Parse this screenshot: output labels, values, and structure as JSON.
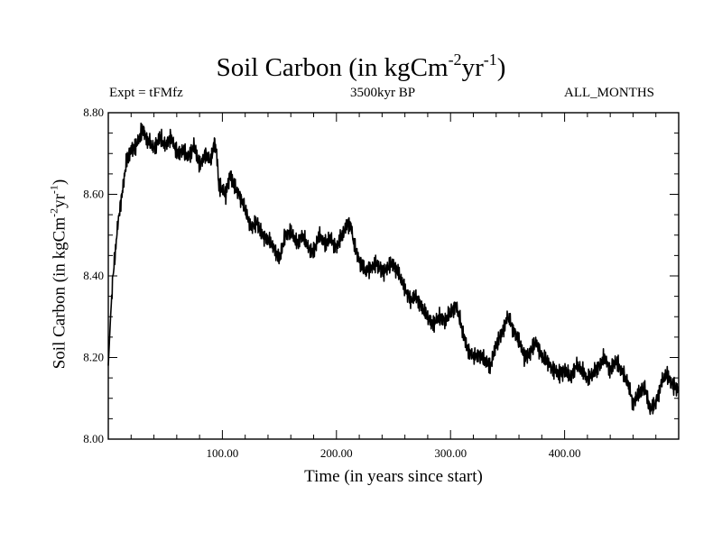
{
  "chart_data": {
    "type": "line",
    "title": {
      "text": "Soil Carbon (in kgCm",
      "sup1": "-2",
      "mid": "yr",
      "sup2": "-1",
      "end": ")"
    },
    "subtitle_left": "Expt = tFMfz",
    "subtitle_center": "3500kyr BP",
    "subtitle_right": "ALL_MONTHS",
    "xlabel": "Time (in years since start)",
    "ylabel": {
      "text": "Soil Carbon (in kgCm",
      "sup1": "-2",
      "mid": "yr",
      "sup2": "-1",
      "end": ")"
    },
    "xlim": [
      0,
      500
    ],
    "ylim": [
      8.0,
      8.8
    ],
    "xticks": [
      100,
      200,
      300,
      400
    ],
    "xtick_labels": [
      "100.00",
      "200.00",
      "300.00",
      "400.00"
    ],
    "yticks": [
      8.0,
      8.2,
      8.4,
      8.6,
      8.8
    ],
    "ytick_labels": [
      "8.00",
      "8.20",
      "8.40",
      "8.60",
      "8.80"
    ],
    "grid": false,
    "series": [
      {
        "name": "Soil Carbon",
        "color": "#000000",
        "x": [
          0,
          2,
          4,
          6,
          8,
          10,
          13,
          16,
          20,
          25,
          30,
          35,
          40,
          45,
          50,
          55,
          60,
          65,
          70,
          75,
          80,
          85,
          90,
          93,
          95,
          97,
          100,
          103,
          107,
          110,
          115,
          120,
          125,
          130,
          135,
          140,
          145,
          150,
          155,
          160,
          165,
          170,
          175,
          180,
          185,
          190,
          195,
          200,
          205,
          210,
          213,
          215,
          220,
          225,
          230,
          235,
          240,
          245,
          250,
          255,
          260,
          265,
          270,
          275,
          280,
          285,
          290,
          295,
          300,
          305,
          310,
          315,
          320,
          325,
          330,
          335,
          340,
          345,
          350,
          355,
          360,
          365,
          370,
          375,
          380,
          385,
          390,
          395,
          400,
          405,
          410,
          415,
          420,
          425,
          430,
          435,
          440,
          445,
          450,
          455,
          460,
          465,
          470,
          475,
          480,
          485,
          490,
          495,
          500
        ],
        "y": [
          8.18,
          8.3,
          8.4,
          8.45,
          8.52,
          8.56,
          8.62,
          8.68,
          8.71,
          8.72,
          8.76,
          8.73,
          8.71,
          8.74,
          8.72,
          8.74,
          8.7,
          8.71,
          8.69,
          8.72,
          8.67,
          8.7,
          8.68,
          8.73,
          8.7,
          8.62,
          8.61,
          8.6,
          8.65,
          8.62,
          8.6,
          8.56,
          8.52,
          8.53,
          8.5,
          8.49,
          8.47,
          8.44,
          8.5,
          8.51,
          8.48,
          8.5,
          8.47,
          8.46,
          8.5,
          8.48,
          8.49,
          8.47,
          8.5,
          8.53,
          8.52,
          8.48,
          8.44,
          8.41,
          8.42,
          8.43,
          8.41,
          8.42,
          8.43,
          8.4,
          8.37,
          8.34,
          8.35,
          8.32,
          8.3,
          8.28,
          8.3,
          8.29,
          8.31,
          8.33,
          8.27,
          8.22,
          8.2,
          8.21,
          8.19,
          8.18,
          8.23,
          8.26,
          8.3,
          8.27,
          8.24,
          8.2,
          8.21,
          8.24,
          8.2,
          8.19,
          8.17,
          8.16,
          8.17,
          8.15,
          8.18,
          8.17,
          8.15,
          8.16,
          8.18,
          8.2,
          8.17,
          8.19,
          8.17,
          8.14,
          8.09,
          8.11,
          8.13,
          8.07,
          8.09,
          8.14,
          8.16,
          8.13,
          8.12
        ]
      }
    ]
  }
}
